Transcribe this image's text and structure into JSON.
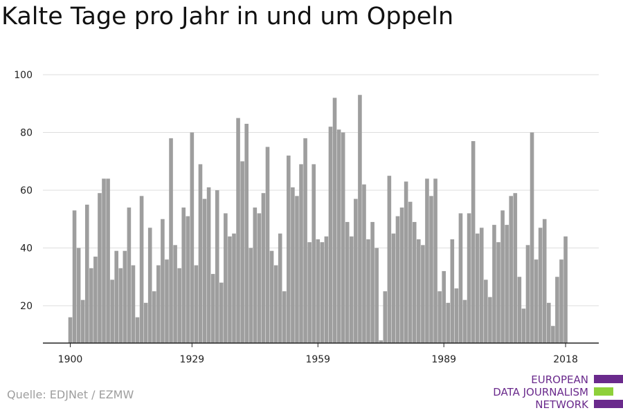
{
  "title": "Kalte Tage pro Jahr in und um Oppeln",
  "source": "Quelle: EDJNet / EZMW",
  "logo": {
    "lines": [
      "EUROPEAN",
      "DATA JOURNALISM",
      "NETWORK"
    ],
    "colors": [
      "#6a2a8c",
      "#8ed03a",
      "#6a2a8c"
    ]
  },
  "colors": {
    "bar": "#9e9e9e",
    "grid": "#dddddd",
    "axis": "#222222"
  },
  "chart_data": {
    "type": "bar",
    "title": "Kalte Tage pro Jahr in und um Oppeln",
    "xlabel": "",
    "ylabel": "",
    "x_start": 1900,
    "x_ticks": [
      1900,
      1929,
      1959,
      1989,
      2018
    ],
    "y_ticks": [
      20,
      40,
      60,
      80,
      100
    ],
    "ylim": [
      7,
      100
    ],
    "grid": true,
    "values": [
      16,
      53,
      40,
      22,
      55,
      33,
      37,
      59,
      64,
      64,
      29,
      39,
      33,
      39,
      54,
      34,
      16,
      58,
      21,
      47,
      25,
      34,
      50,
      36,
      78,
      41,
      33,
      54,
      51,
      80,
      34,
      69,
      57,
      61,
      31,
      60,
      28,
      52,
      44,
      45,
      85,
      70,
      83,
      40,
      54,
      52,
      59,
      75,
      39,
      34,
      45,
      25,
      72,
      61,
      58,
      69,
      78,
      42,
      69,
      43,
      42,
      44,
      82,
      92,
      81,
      80,
      49,
      44,
      57,
      93,
      62,
      43,
      49,
      40,
      8,
      25,
      65,
      45,
      51,
      54,
      63,
      56,
      49,
      43,
      41,
      64,
      58,
      64,
      25,
      32,
      21,
      43,
      26,
      52,
      22,
      52,
      77,
      45,
      47,
      29,
      23,
      48,
      42,
      53,
      48,
      58,
      59,
      30,
      19,
      41,
      80,
      36,
      47,
      50,
      21,
      13,
      30,
      36,
      44
    ]
  }
}
